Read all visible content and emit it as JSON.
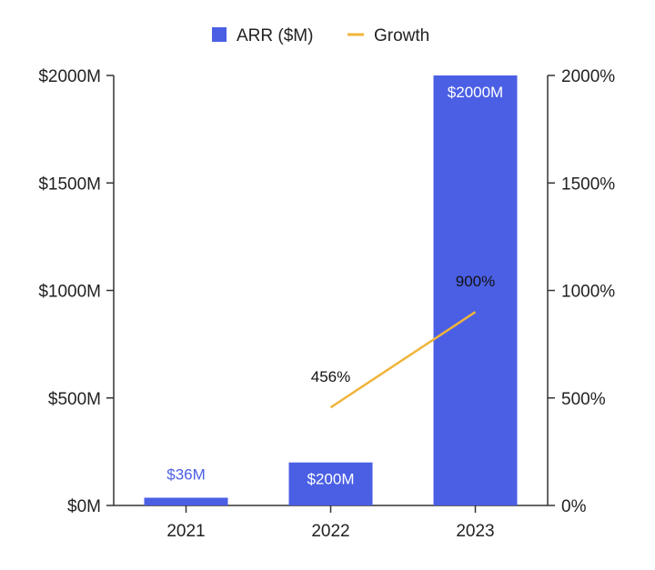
{
  "chart_data": {
    "type": "bar",
    "categories": [
      "2021",
      "2022",
      "2023"
    ],
    "series": [
      {
        "name": "ARR ($M)",
        "type": "bar",
        "axis": "left",
        "values": [
          36,
          200,
          2000
        ],
        "labels": [
          "$36M",
          "$200M",
          "$2000M"
        ]
      },
      {
        "name": "Growth",
        "type": "line",
        "axis": "right",
        "x": [
          "2022",
          "2023"
        ],
        "values": [
          456,
          900
        ],
        "labels": [
          "456%",
          "900%"
        ]
      }
    ],
    "y_left": {
      "range": [
        0,
        2000
      ],
      "ticks": [
        0,
        500,
        1000,
        1500,
        2000
      ],
      "tick_labels": [
        "$0M",
        "$500M",
        "$1000M",
        "$1500M",
        "$2000M"
      ]
    },
    "y_right": {
      "range": [
        0,
        2000
      ],
      "ticks": [
        0,
        500,
        1000,
        1500,
        2000
      ],
      "tick_labels": [
        "0%",
        "500%",
        "1000%",
        "1500%",
        "2000%"
      ]
    },
    "legend": {
      "placement": "top-center",
      "items": [
        "ARR ($M)",
        "Growth"
      ]
    },
    "colors": {
      "bar": "#4b5fe4",
      "line": "#f0b43a",
      "label_outside": "#4b5fe4",
      "label_inside": "#ffffff",
      "line_label": "#111111",
      "axis": "#333333"
    }
  }
}
